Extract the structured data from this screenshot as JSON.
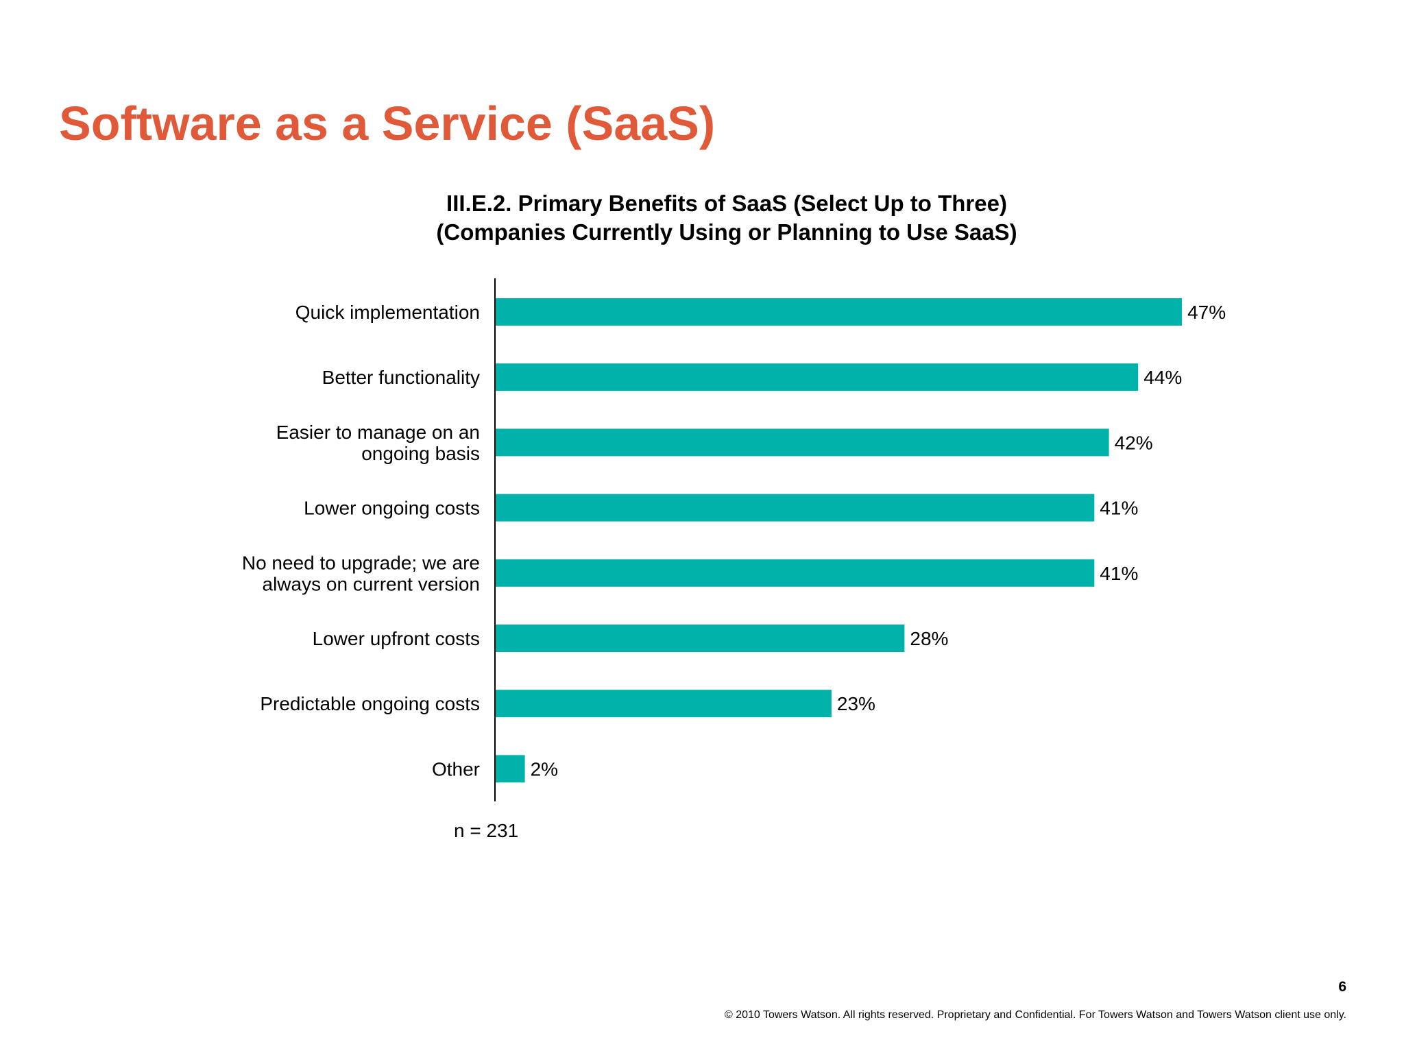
{
  "slide": {
    "title": "Software as a Service (SaaS)",
    "page_number": "6",
    "copyright": "© 2010 Towers Watson. All rights reserved. Proprietary and Confidential. For Towers Watson and Towers Watson client use only."
  },
  "chart_data": {
    "type": "bar",
    "orientation": "horizontal",
    "title": "III.E.2. Primary Benefits of SaaS (Select Up to Three)",
    "subtitle": "(Companies Currently Using or Planning to Use SaaS)",
    "categories": [
      [
        "Quick implementation"
      ],
      [
        "Better functionality"
      ],
      [
        "Easier to manage on an",
        "ongoing basis"
      ],
      [
        "Lower ongoing costs"
      ],
      [
        "No need to upgrade; we are",
        "always on current version"
      ],
      [
        "Lower upfront costs"
      ],
      [
        "Predictable ongoing costs"
      ],
      [
        "Other"
      ]
    ],
    "values": [
      47,
      44,
      42,
      41,
      41,
      28,
      23,
      2
    ],
    "value_labels": [
      "47%",
      "44%",
      "42%",
      "41%",
      "41%",
      "28%",
      "23%",
      "2%"
    ],
    "unit": "%",
    "xlim": [
      0,
      50
    ],
    "grid": false,
    "legend": "none",
    "bar_color": "#00b2a9",
    "note": "n = 231"
  },
  "colors": {
    "title": "#e05a3a",
    "bar": "#00b2a9"
  }
}
